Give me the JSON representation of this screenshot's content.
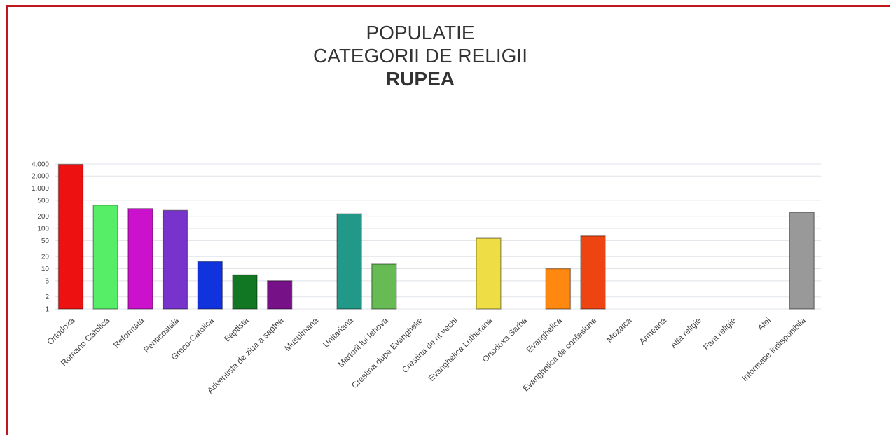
{
  "chart_data": {
    "type": "bar",
    "title": "POPULATIE",
    "subtitle": "CATEGORII DE RELIGII",
    "location": "RUPEA",
    "xlabel": "",
    "ylabel": "",
    "yscale": "log",
    "ylim": [
      1,
      4500
    ],
    "grid": true,
    "legend": "none",
    "yticks": [
      1,
      2,
      5,
      10,
      20,
      50,
      100,
      200,
      500,
      1000,
      2000,
      4000
    ],
    "ytick_labels": [
      "1",
      "2",
      "5",
      "10",
      "20",
      "50",
      "100",
      "200",
      "500",
      "1,000",
      "2,000",
      "4,000"
    ],
    "categories": [
      "Ortodoxa",
      "Romano Catolica",
      "Reformata",
      "Penticostala",
      "Greco-Catolica",
      "Baptista",
      "Adventista de ziua a saptea",
      "Musulmana",
      "Unitariana",
      "Martorii lui Iehova",
      "Crestina dupa Evanghelie",
      "Crestina de rit vechi",
      "Evanghelica Lutherana",
      "Ortodoxa Sarba",
      "Evanghelica",
      "Evanghelica de confesiune",
      "Mozaica",
      "Armeana",
      "Alta religie",
      "Fara religie",
      "Atei",
      "Informatie indisponibila"
    ],
    "values": [
      3900,
      380,
      310,
      280,
      15,
      7,
      5,
      0,
      230,
      13,
      0,
      0,
      57,
      0,
      10,
      65,
      0,
      0,
      0,
      0,
      0,
      250
    ],
    "colors": [
      "#ee1111",
      "#55ee66",
      "#cc11cc",
      "#7733cc",
      "#1133dd",
      "#117722",
      "#771188",
      "#999999",
      "#229988",
      "#66bb55",
      "#999999",
      "#999999",
      "#eedd44",
      "#999999",
      "#ff8811",
      "#ee4411",
      "#999999",
      "#999999",
      "#999999",
      "#999999",
      "#999999",
      "#999999"
    ]
  }
}
